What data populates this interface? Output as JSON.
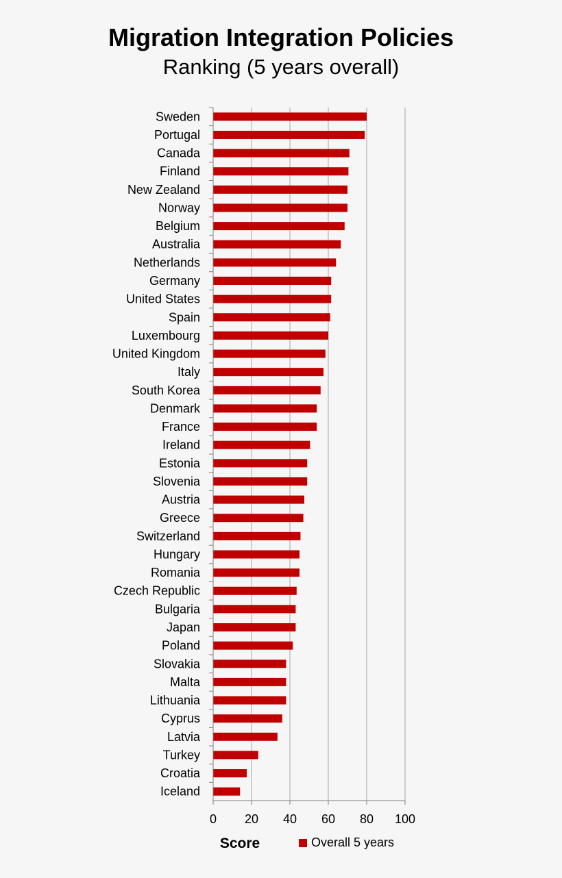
{
  "chart_data": {
    "type": "bar",
    "orientation": "horizontal",
    "title": "Migration Integration Policies",
    "subtitle": "Ranking (5 years overall)",
    "xlabel": "Score",
    "ylabel": "",
    "xlim": [
      0,
      100
    ],
    "xticks": [
      0,
      20,
      40,
      60,
      80,
      100
    ],
    "grid": "vertical",
    "legend_position": "bottom",
    "bar_color": "#c00000",
    "categories": [
      "Sweden",
      "Portugal",
      "Canada",
      "Finland",
      "New Zealand",
      "Norway",
      "Belgium",
      "Australia",
      "Netherlands",
      "Germany",
      "United States",
      "Spain",
      "Luxembourg",
      "United Kingdom",
      "Italy",
      "South Korea",
      "Denmark",
      "France",
      "Ireland",
      "Estonia",
      "Slovenia",
      "Austria",
      "Greece",
      "Switzerland",
      "Hungary",
      "Romania",
      "Czech Republic",
      "Bulgaria",
      "Japan",
      "Poland",
      "Slovakia",
      "Malta",
      "Lithuania",
      "Cyprus",
      "Latvia",
      "Turkey",
      "Croatia",
      "Iceland"
    ],
    "series": [
      {
        "name": "Overall 5 years",
        "values": [
          80,
          79,
          71,
          70.5,
          70,
          70,
          68.5,
          66.5,
          64,
          61.5,
          61.5,
          61,
          60,
          58.5,
          57.5,
          56,
          54,
          54,
          50.5,
          49,
          49,
          47.5,
          47,
          45.5,
          45,
          45,
          43.5,
          43,
          43,
          41.5,
          38,
          38,
          38,
          36,
          33.5,
          23.5,
          17.5,
          14
        ]
      }
    ]
  }
}
